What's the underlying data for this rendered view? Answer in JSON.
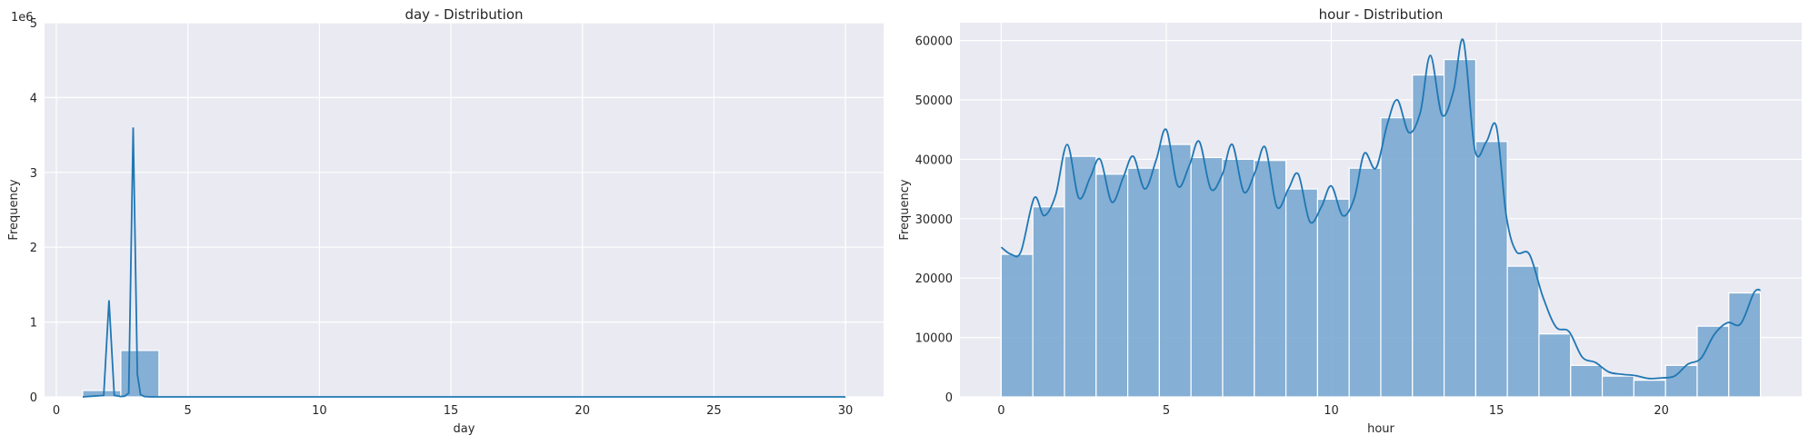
{
  "chart_data": [
    {
      "type": "bar",
      "title": "day - Distribution",
      "xlabel": "day",
      "ylabel": "Frequency",
      "offset_text": "1e6",
      "xlim": [
        -0.45,
        31.45
      ],
      "ylim": [
        0,
        5.0
      ],
      "xticks": [
        0,
        5,
        10,
        15,
        20,
        25,
        30
      ],
      "xtick_labels": [
        "0",
        "5",
        "10",
        "15",
        "20",
        "25",
        "30"
      ],
      "yticks": [
        0,
        1,
        2,
        3,
        4,
        5
      ],
      "ytick_labels": [
        "0",
        "1",
        "2",
        "3",
        "4",
        "5"
      ],
      "grid": true,
      "bins": {
        "start": 1,
        "width": 1.45,
        "count": 20
      },
      "values": [
        0.085,
        0.62,
        0.004,
        0.004,
        0.004,
        0.004,
        0.004,
        0.004,
        0.004,
        0.004,
        0.004,
        0.004,
        0.004,
        0.004,
        0.004,
        0.004,
        0.004,
        0.004,
        0.004,
        0.004
      ],
      "kde": {
        "x": [
          1.0,
          1.8,
          2.0,
          2.2,
          2.45,
          2.6,
          2.75,
          2.92,
          3.08,
          3.2,
          3.35,
          3.6,
          30.0
        ],
        "y": [
          0.0,
          0.02,
          1.29,
          0.02,
          0.005,
          0.01,
          0.05,
          3.6,
          0.3,
          0.03,
          0.005,
          0.0,
          0.0
        ]
      },
      "bar_color": "#7aa9d0",
      "line_color": "#1f77b4"
    },
    {
      "type": "bar",
      "title": "hour - Distribution",
      "xlabel": "hour",
      "ylabel": "Frequency",
      "xlim": [
        -1.25,
        24.25
      ],
      "ylim": [
        0,
        63000
      ],
      "xticks": [
        0,
        5,
        10,
        15,
        20
      ],
      "xtick_labels": [
        "0",
        "5",
        "10",
        "15",
        "20"
      ],
      "yticks": [
        0,
        10000,
        20000,
        30000,
        40000,
        50000,
        60000
      ],
      "ytick_labels": [
        "0",
        "10000",
        "20000",
        "30000",
        "40000",
        "50000",
        "60000"
      ],
      "grid": true,
      "bins": {
        "start": 0,
        "width": 0.9583,
        "count": 24
      },
      "values": [
        24000,
        32000,
        40500,
        37500,
        38500,
        42500,
        40300,
        40000,
        39800,
        35000,
        33300,
        38500,
        47000,
        54200,
        56800,
        43000,
        22000,
        10600,
        5300,
        3500,
        2800,
        5300,
        11900,
        17500
      ],
      "kde": {
        "x": [
          0,
          0.3,
          0.6,
          1.0,
          1.3,
          1.65,
          2.0,
          2.35,
          2.7,
          3.0,
          3.35,
          3.7,
          4.0,
          4.35,
          4.7,
          5.0,
          5.35,
          5.7,
          6.0,
          6.35,
          6.7,
          7.0,
          7.35,
          7.7,
          8.0,
          8.35,
          8.7,
          9.0,
          9.35,
          9.7,
          10.0,
          10.35,
          10.7,
          11.0,
          11.35,
          11.7,
          12.0,
          12.35,
          12.7,
          13.0,
          13.35,
          13.7,
          14.0,
          14.35,
          14.7,
          15.0,
          15.3,
          15.6,
          16.0,
          16.4,
          16.8,
          17.2,
          17.6,
          18.0,
          18.4,
          18.8,
          19.2,
          19.6,
          20.0,
          20.4,
          20.8,
          21.2,
          21.6,
          22.0,
          22.4,
          22.8,
          23.0
        ],
        "y": [
          25200,
          24000,
          24500,
          33500,
          30500,
          34000,
          42500,
          33500,
          37000,
          40000,
          32800,
          37000,
          40500,
          35000,
          40000,
          45000,
          35500,
          39000,
          43000,
          35000,
          37500,
          42500,
          34500,
          38000,
          42000,
          32000,
          35000,
          37500,
          29500,
          32000,
          35500,
          30500,
          33500,
          41000,
          38500,
          46000,
          50000,
          44500,
          48000,
          57500,
          47500,
          51500,
          60000,
          41500,
          43000,
          45500,
          30500,
          24500,
          24000,
          17000,
          11800,
          11000,
          6700,
          5800,
          4200,
          3800,
          3600,
          3100,
          3200,
          3500,
          5500,
          6500,
          10500,
          12500,
          12300,
          17500,
          18000
        ]
      },
      "bar_color": "#7aa9d0",
      "line_color": "#1f77b4"
    }
  ]
}
